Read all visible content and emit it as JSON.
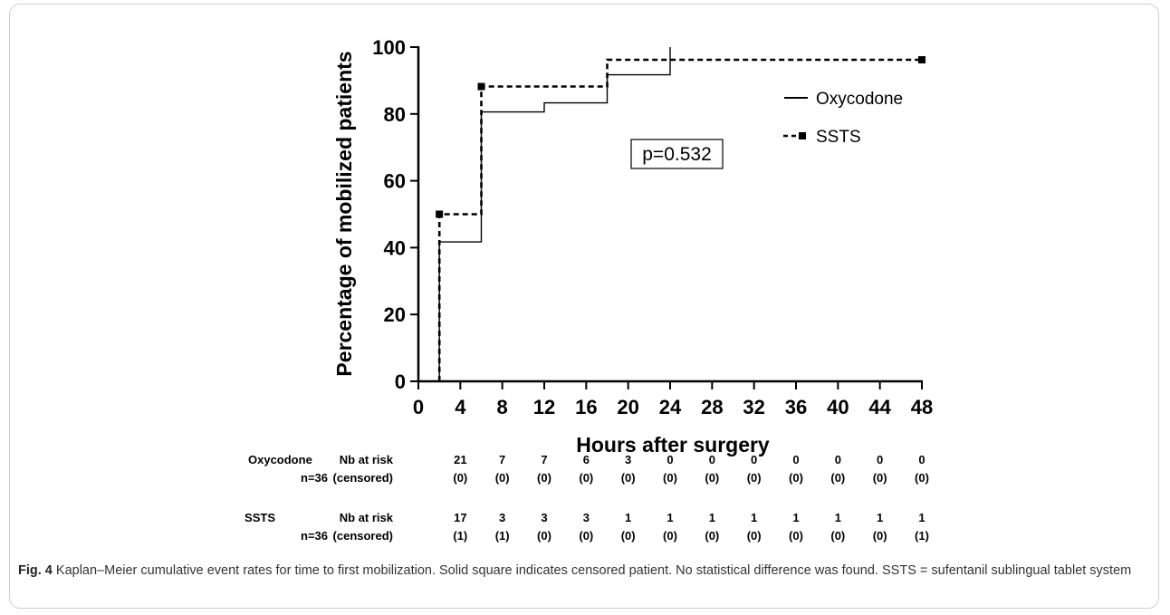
{
  "chart_data": {
    "type": "line",
    "title": "",
    "xlabel": "Hours after surgery",
    "ylabel": "Percentage of mobilized patients",
    "xlim": [
      0,
      48
    ],
    "ylim": [
      0,
      100
    ],
    "x_ticks": [
      0,
      4,
      8,
      12,
      16,
      20,
      24,
      28,
      32,
      36,
      40,
      44,
      48
    ],
    "y_ticks": [
      0,
      20,
      40,
      60,
      80,
      100
    ],
    "grid": false,
    "legend_position": "top-right",
    "annotation": "p=0.532",
    "series": [
      {
        "name": "Oxycodone",
        "style": "solid",
        "step_x": [
          2,
          2,
          6,
          6,
          12,
          12,
          18,
          18,
          24,
          24
        ],
        "step_y": [
          0,
          41.7,
          41.7,
          80.6,
          80.6,
          83.3,
          83.3,
          91.7,
          91.7,
          100
        ],
        "censored": []
      },
      {
        "name": "SSTS",
        "style": "dashed",
        "step_x": [
          2,
          2,
          6,
          6,
          18,
          18,
          48
        ],
        "step_y": [
          0,
          50,
          50,
          88.2,
          88.2,
          96.2,
          96.2
        ],
        "censored": [
          {
            "x": 2,
            "y": 50
          },
          {
            "x": 6,
            "y": 88.2
          },
          {
            "x": 48,
            "y": 96.2
          }
        ]
      }
    ],
    "risk_table": {
      "times": [
        4,
        8,
        12,
        16,
        20,
        24,
        28,
        32,
        36,
        40,
        44,
        48
      ],
      "groups": [
        {
          "name": "Oxycodone",
          "n": "n=36",
          "row1_label": "Nb at risk",
          "row2_label": "(censored)",
          "at_risk": [
            "21",
            "7",
            "7",
            "6",
            "3",
            "0",
            "0",
            "0",
            "0",
            "0",
            "0",
            "0"
          ],
          "censored": [
            "(0)",
            "(0)",
            "(0)",
            "(0)",
            "(0)",
            "(0)",
            "(0)",
            "(0)",
            "(0)",
            "(0)",
            "(0)",
            "(0)"
          ]
        },
        {
          "name": "SSTS",
          "n": "n=36",
          "row1_label": "Nb at risk",
          "row2_label": "(censored)",
          "at_risk": [
            "17",
            "3",
            "3",
            "3",
            "1",
            "1",
            "1",
            "1",
            "1",
            "1",
            "1",
            "1"
          ],
          "censored": [
            "(1)",
            "(1)",
            "(0)",
            "(0)",
            "(0)",
            "(0)",
            "(0)",
            "(0)",
            "(0)",
            "(0)",
            "(0)",
            "(1)"
          ]
        }
      ]
    }
  },
  "caption": {
    "label": "Fig. 4",
    "text": " Kaplan–Meier cumulative event rates for time to first mobilization. Solid square indicates censored patient. No statistical difference was found. SSTS = sufentanil sublingual tablet system"
  }
}
